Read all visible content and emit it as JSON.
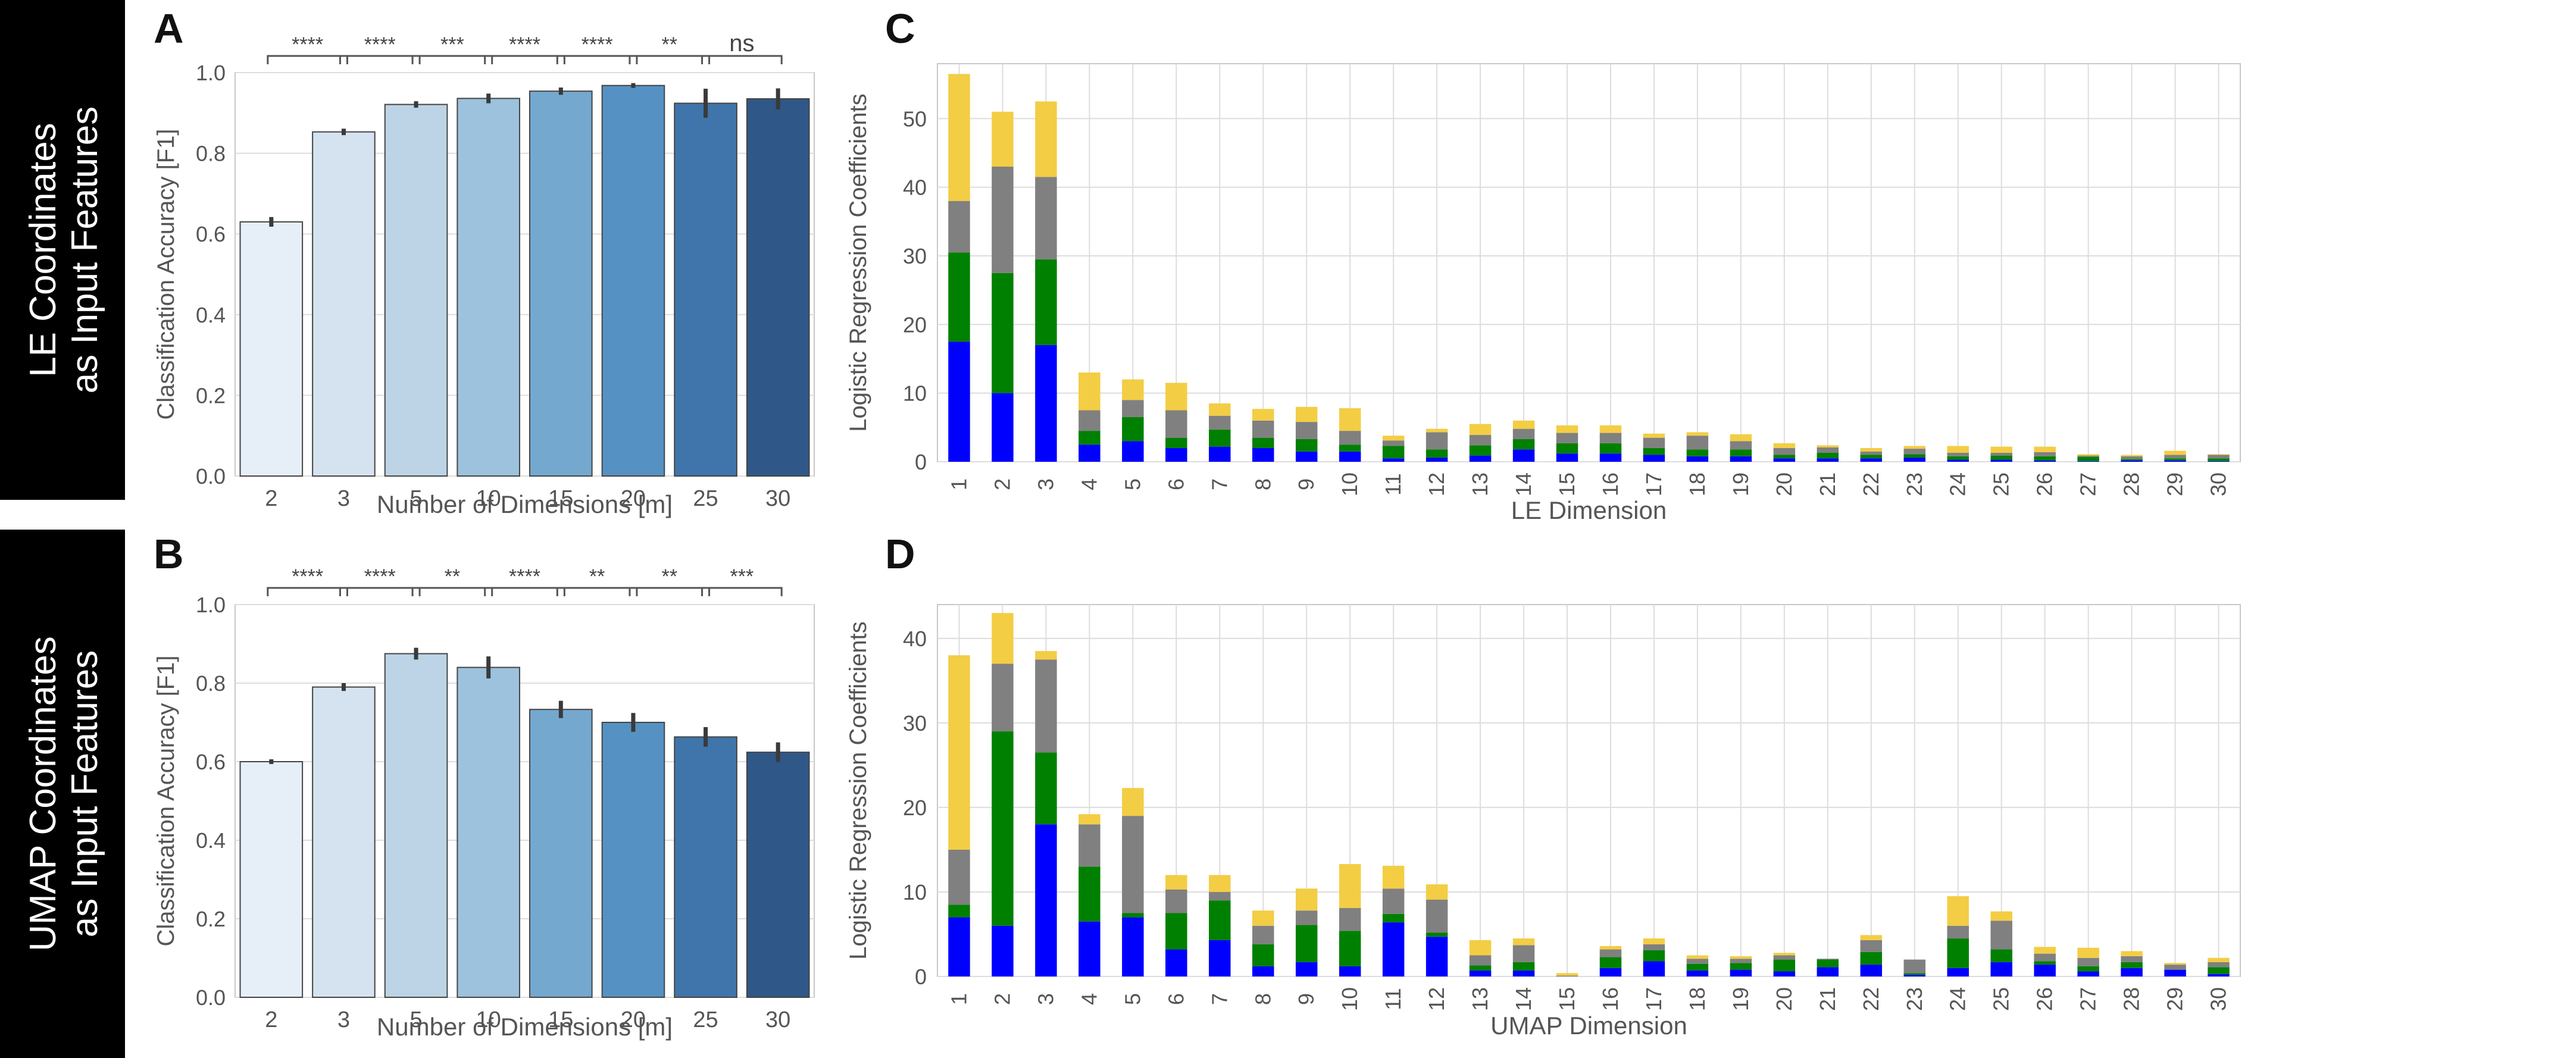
{
  "side_labels": [
    {
      "line1": "LE Coordinates",
      "line2": "as Input Features"
    },
    {
      "line1": "UMAP Coordinates",
      "line2": "as Input Features"
    }
  ],
  "colors": {
    "blue": "#0000ff",
    "green": "#008000",
    "gray": "#808080",
    "yellow": "#f3cd44",
    "errorbar": "#3a3a3a",
    "bar_edge": "#444444",
    "grid": "#dddddd",
    "frame": "#c8c8c8",
    "text": "#555555",
    "letter": "#111111"
  },
  "chart_data": [
    {
      "panel": "A",
      "type": "bar",
      "xlabel": "Number of Dimensions [m]",
      "ylabel": "Classification Accuracy [F1]",
      "ylim": [
        0,
        1.0
      ],
      "yticks": [
        "0.0",
        "0.2",
        "0.4",
        "0.6",
        "0.8",
        "1.0"
      ],
      "categories": [
        "2",
        "3",
        "5",
        "10",
        "15",
        "20",
        "25",
        "30"
      ],
      "values": [
        0.63,
        0.853,
        0.921,
        0.936,
        0.954,
        0.968,
        0.924,
        0.935
      ],
      "errors": [
        0.012,
        0.008,
        0.008,
        0.012,
        0.009,
        0.006,
        0.036,
        0.026
      ],
      "bar_colors": [
        "#e6eef8",
        "#d5e3f1",
        "#bcd4e6",
        "#9cc2dd",
        "#74a8cf",
        "#5592c3",
        "#3f75aa",
        "#2f5788"
      ],
      "significance": [
        "****",
        "****",
        "***",
        "****",
        "****",
        "**",
        "ns"
      ]
    },
    {
      "panel": "B",
      "type": "bar",
      "xlabel": "Number of Dimensions [m]",
      "ylabel": "Classification Accuracy [F1]",
      "ylim": [
        0,
        1.0
      ],
      "yticks": [
        "0.0",
        "0.2",
        "0.4",
        "0.6",
        "0.8",
        "1.0"
      ],
      "categories": [
        "2",
        "3",
        "5",
        "10",
        "15",
        "20",
        "25",
        "30"
      ],
      "values": [
        0.6,
        0.79,
        0.875,
        0.84,
        0.733,
        0.7,
        0.663,
        0.624
      ],
      "errors": [
        0.006,
        0.01,
        0.015,
        0.028,
        0.022,
        0.024,
        0.025,
        0.025
      ],
      "bar_colors": [
        "#e6eef8",
        "#d5e3f1",
        "#bcd4e6",
        "#9cc2dd",
        "#74a8cf",
        "#5592c3",
        "#3f75aa",
        "#2f5788"
      ],
      "significance": [
        "****",
        "****",
        "**",
        "****",
        "**",
        "**",
        "***"
      ]
    },
    {
      "panel": "C",
      "type": "bar",
      "stacked": true,
      "xlabel": "LE Dimension",
      "ylabel": "Logistic Regression Coefficients",
      "ylim": [
        0,
        58
      ],
      "yticks": [
        0,
        10,
        20,
        30,
        40,
        50
      ],
      "categories": [
        "1",
        "2",
        "3",
        "4",
        "5",
        "6",
        "7",
        "8",
        "9",
        "10",
        "11",
        "12",
        "13",
        "14",
        "15",
        "16",
        "17",
        "18",
        "19",
        "20",
        "21",
        "22",
        "23",
        "24",
        "25",
        "26",
        "27",
        "28",
        "29",
        "30"
      ],
      "series": [
        {
          "name": "blue",
          "values": [
            17.5,
            10,
            17,
            2.5,
            3,
            2,
            2.2,
            2,
            1.5,
            1.5,
            0.5,
            0.6,
            0.9,
            1.8,
            1.2,
            1.2,
            1,
            0.8,
            0.8,
            0.5,
            0.5,
            0.5,
            0.6,
            0.3,
            0.3,
            0.2,
            0.1,
            0.2,
            0.2,
            0.1
          ]
        },
        {
          "name": "green",
          "values": [
            13,
            17.5,
            12.5,
            2,
            3.5,
            1.5,
            2.5,
            1.5,
            1.8,
            1,
            1.8,
            1.2,
            1.5,
            1.5,
            1.5,
            1.5,
            1,
            1,
            1,
            0.5,
            0.8,
            0.5,
            0.5,
            0.5,
            0.6,
            0.6,
            0.6,
            0.2,
            0.3,
            0.4
          ]
        },
        {
          "name": "gray",
          "values": [
            7.5,
            15.5,
            12,
            3,
            2.5,
            4,
            2,
            2.5,
            2.5,
            2,
            0.8,
            2.5,
            1.5,
            1.5,
            1.5,
            1.5,
            1.5,
            2,
            1.2,
            1,
            0.8,
            0.5,
            0.8,
            0.5,
            0.4,
            0.6,
            0.2,
            0.4,
            0.5,
            0.5
          ]
        },
        {
          "name": "yellow",
          "values": [
            18.5,
            8,
            11,
            5.5,
            3,
            4,
            1.8,
            1.7,
            2.2,
            3.3,
            0.7,
            0.5,
            1.6,
            1.2,
            1.1,
            1.1,
            0.6,
            0.5,
            1,
            0.7,
            0.3,
            0.5,
            0.4,
            1,
            0.9,
            0.8,
            0.2,
            0.2,
            0.6,
            0.1
          ]
        }
      ]
    },
    {
      "panel": "D",
      "type": "bar",
      "stacked": true,
      "xlabel": "UMAP Dimension",
      "ylabel": "Logistic Regression Coefficients",
      "ylim": [
        0,
        44
      ],
      "yticks": [
        0,
        10,
        20,
        30,
        40
      ],
      "categories": [
        "1",
        "2",
        "3",
        "4",
        "5",
        "6",
        "7",
        "8",
        "9",
        "10",
        "11",
        "12",
        "13",
        "14",
        "15",
        "16",
        "17",
        "18",
        "19",
        "20",
        "21",
        "22",
        "23",
        "24",
        "25",
        "26",
        "27",
        "28",
        "29",
        "30"
      ],
      "series": [
        {
          "name": "blue",
          "values": [
            7,
            6,
            18,
            6.5,
            7,
            3.2,
            4.3,
            1.2,
            1.7,
            1.2,
            6.4,
            4.7,
            0.7,
            0.7,
            0,
            1,
            1.8,
            0.7,
            0.8,
            0.6,
            1.1,
            1.4,
            0.2,
            1,
            1.7,
            1.4,
            0.6,
            1,
            0.8,
            0.3
          ]
        },
        {
          "name": "green",
          "values": [
            1.5,
            23,
            8.5,
            6.5,
            0.5,
            4.3,
            4.7,
            2.6,
            4.4,
            4.2,
            1,
            0.5,
            0.6,
            1,
            0,
            1.3,
            1.3,
            0.8,
            0.8,
            1.4,
            0.9,
            1.5,
            0.2,
            3.5,
            1.5,
            0.4,
            0.6,
            0.7,
            0,
            0.8
          ]
        },
        {
          "name": "gray",
          "values": [
            6.5,
            8,
            11,
            5,
            11.5,
            2.8,
            1,
            2.2,
            1.7,
            2.7,
            3,
            3.9,
            1.2,
            2,
            0.1,
            0.9,
            0.7,
            0.6,
            0.5,
            0.5,
            0.1,
            1.4,
            1.6,
            1.5,
            3.4,
            0.9,
            1,
            0.7,
            0.6,
            0.6
          ]
        },
        {
          "name": "yellow",
          "values": [
            23,
            6,
            1,
            1.2,
            3.3,
            1.7,
            2,
            1.8,
            2.6,
            5.2,
            2.7,
            1.8,
            1.8,
            0.8,
            0.3,
            0.4,
            0.7,
            0.4,
            0.3,
            0.3,
            0,
            0.6,
            0,
            3.5,
            1.1,
            0.8,
            1.2,
            0.6,
            0.2,
            0.5
          ]
        }
      ]
    }
  ]
}
